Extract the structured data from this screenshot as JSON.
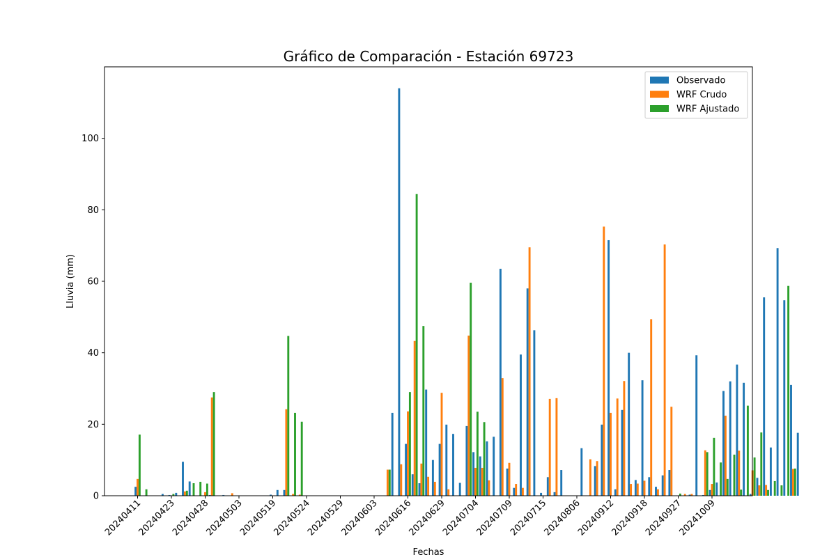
{
  "chart_data": {
    "type": "bar",
    "title": "Gráfico de Comparación - Estación 69723",
    "xlabel": "Fechas",
    "ylabel": "Lluvia (mm)",
    "ylim": [
      0,
      120
    ],
    "yticks": [
      0,
      20,
      40,
      60,
      80,
      100
    ],
    "xtick_labels": [
      "20240411",
      "20240423",
      "20240428",
      "20240503",
      "20240519",
      "20240524",
      "20240529",
      "20240603",
      "20240616",
      "20240629",
      "20240704",
      "20240709",
      "20240715",
      "20240806",
      "20240912",
      "20240918",
      "20240927",
      "20241009"
    ],
    "xtick_every": 5,
    "legend_position": "top-right",
    "series": [
      {
        "name": "Observado",
        "color": "#1f77b4",
        "values": [
          2.5,
          0,
          0,
          0,
          0.5,
          0.2,
          0.8,
          9.5,
          4.0,
          0,
          0,
          0.2,
          0,
          0.2,
          0,
          0,
          0,
          0,
          0,
          0,
          0.3,
          1.6,
          1.6,
          0,
          0,
          0,
          0,
          0,
          0,
          0,
          0,
          0,
          0,
          0,
          0,
          0,
          0,
          0,
          23.2,
          114,
          14.5,
          6.0,
          3.5,
          29.7,
          10.0,
          14.5,
          19.9,
          17.3,
          3.6,
          19.5,
          12.2,
          11.0,
          15.2,
          16.5,
          63.5,
          7.6,
          2.2,
          39.5,
          58.0,
          46.3,
          0.8,
          5.2,
          1.0,
          7.2,
          0,
          0,
          13.3,
          0,
          8.3,
          19.9,
          71.5,
          1.8,
          24.0,
          40.0,
          4.4,
          32.3,
          5.2,
          2.5,
          5.7,
          7.2,
          0,
          0,
          0.3,
          39.3,
          0.2,
          1.6,
          3.7,
          29.3,
          32.0,
          36.7,
          31.6,
          0.5,
          5.0,
          55.5,
          13.5,
          69.3,
          54.7,
          31.0,
          17.6
        ]
      },
      {
        "name": "WRF Crudo",
        "color": "#ff7f0e",
        "values": [
          4.7,
          0,
          0,
          0,
          0,
          0,
          0,
          1.2,
          0,
          0,
          1.0,
          27.5,
          0,
          0,
          0.7,
          0,
          0,
          0,
          0,
          0,
          0,
          0,
          24.2,
          0.5,
          0.3,
          0,
          0,
          0,
          0,
          0,
          0,
          0,
          0,
          0,
          0,
          0,
          0,
          7.3,
          0,
          8.8,
          23.6,
          43.3,
          9.0,
          5.3,
          3.9,
          28.8,
          1.8,
          0,
          0,
          44.8,
          7.8,
          7.8,
          4.3,
          0,
          32.9,
          9.2,
          3.3,
          2.2,
          69.5,
          0,
          0,
          27.1,
          27.3,
          0,
          0,
          0,
          0,
          10.2,
          9.7,
          75.3,
          23.2,
          27.2,
          32.1,
          3.3,
          3.4,
          4.2,
          49.4,
          1.8,
          70.3,
          24.9,
          0,
          0.5,
          0.5,
          0,
          12.7,
          3.3,
          0,
          22.4,
          0,
          12.6,
          0,
          7.1,
          2.9,
          3.0,
          0,
          0,
          0,
          7.5
        ]
      },
      {
        "name": "WRF Ajustado",
        "color": "#2ca02c",
        "values": [
          17.1,
          1.8,
          0,
          0,
          0,
          0.5,
          0,
          1.4,
          3.5,
          3.9,
          3.4,
          29.0,
          0,
          0,
          0,
          0,
          0,
          0,
          0,
          0,
          0,
          0,
          44.7,
          23.2,
          20.7,
          0,
          0,
          0,
          0,
          0,
          0,
          0,
          0,
          0,
          0,
          0,
          0,
          7.3,
          0,
          0,
          29.0,
          84.4,
          47.5,
          0,
          0,
          0,
          0,
          0,
          0,
          59.6,
          23.5,
          20.6,
          0,
          0,
          0,
          0,
          0,
          0,
          0,
          0,
          0,
          0,
          0,
          0,
          0,
          0,
          0,
          0,
          0,
          0,
          0,
          0,
          0,
          0,
          0,
          0,
          0,
          0,
          0,
          0,
          0.6,
          0,
          0,
          0,
          12.2,
          16.2,
          9.3,
          4.7,
          11.5,
          1.7,
          25.2,
          10.7,
          17.7,
          1.6,
          4.1,
          2.9,
          58.7,
          7.6
        ]
      }
    ]
  }
}
